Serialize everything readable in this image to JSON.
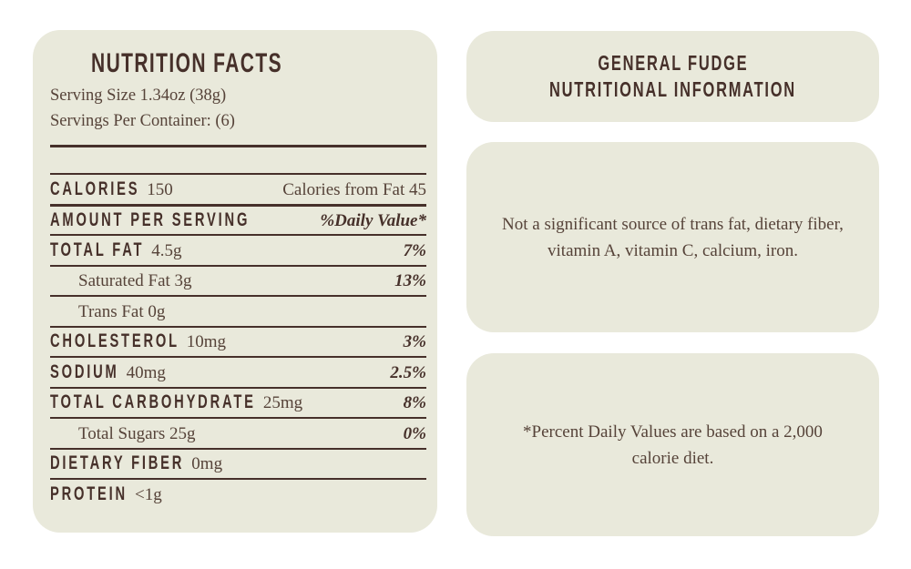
{
  "theme": {
    "page_bg": "#ffffff",
    "panel_bg": "#e9e9db",
    "dark_brown": "#46302a",
    "body_brown": "#564339"
  },
  "nutrition_label": {
    "title": "NUTRITION FACTS",
    "serving_size": "Serving Size 1.34oz (38g)",
    "servings_per_container": "Servings Per Container: (6)",
    "rows": [
      {
        "label": "CALORIES",
        "label_style": "bold",
        "amount": "150",
        "right": "Calories from Fat 45",
        "right_style": "normal",
        "divider_top": "thin",
        "indent": false
      },
      {
        "label": "AMOUNT PER SERVING",
        "label_style": "bold",
        "amount": "",
        "right": "%Daily Value*",
        "right_style": "italic",
        "divider_top": "thick",
        "indent": false
      },
      {
        "label": "TOTAL FAT",
        "label_style": "bold",
        "amount": "4.5g",
        "right": "7%",
        "right_style": "italic",
        "divider_top": "thin",
        "indent": false
      },
      {
        "label": "Saturated Fat 3g",
        "label_style": "plain",
        "amount": "",
        "right": "13%",
        "right_style": "italic",
        "divider_top": "thin",
        "indent": true
      },
      {
        "label": "Trans Fat 0g",
        "label_style": "plain",
        "amount": "",
        "right": "",
        "right_style": "normal",
        "divider_top": "thin",
        "indent": true
      },
      {
        "label": "CHOLESTEROL",
        "label_style": "bold",
        "amount": "10mg",
        "right": "3%",
        "right_style": "italic",
        "divider_top": "thin",
        "indent": false
      },
      {
        "label": "SODIUM",
        "label_style": "bold",
        "amount": "40mg",
        "right": "2.5%",
        "right_style": "italic",
        "divider_top": "thin",
        "indent": false
      },
      {
        "label": "TOTAL CARBOHYDRATE",
        "label_style": "bold",
        "amount": "25mg",
        "right": "8%",
        "right_style": "italic",
        "divider_top": "thin",
        "indent": false
      },
      {
        "label": "Total Sugars 25g",
        "label_style": "plain",
        "amount": "",
        "right": "0%",
        "right_style": "italic",
        "divider_top": "thin",
        "indent": true
      },
      {
        "label": "DIETARY FIBER",
        "label_style": "bold",
        "amount": "0mg",
        "right": "",
        "right_style": "normal",
        "divider_top": "thin",
        "indent": false
      },
      {
        "label": "PROTEIN",
        "label_style": "bold",
        "amount": "<1g",
        "right": "",
        "right_style": "normal",
        "divider_top": "thin",
        "indent": false
      }
    ]
  },
  "info_panels": {
    "title_line1": "GENERAL FUDGE",
    "title_line2": "NUTRITIONAL INFORMATION",
    "note_significant": "Not a significant source of trans fat, dietary fiber, vitamin A, vitamin C, calcium, iron.",
    "note_daily_values": "*Percent Daily Values are based on a 2,000 calorie diet."
  }
}
